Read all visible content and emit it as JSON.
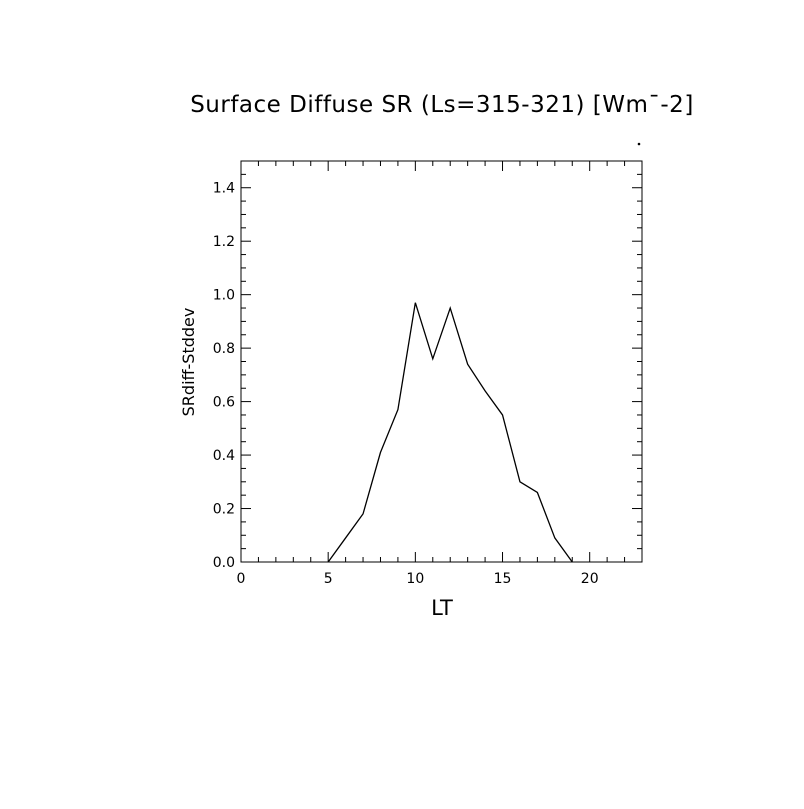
{
  "chart_data": {
    "type": "line",
    "title": "Surface Diffuse SR (Ls=315-321) [Wm¯-2]",
    "xlabel": "LT",
    "ylabel": "SRdiff-Stddev",
    "xlim": [
      0,
      23
    ],
    "ylim": [
      0,
      1.5
    ],
    "xticks": [
      0,
      5,
      10,
      15,
      20
    ],
    "xtick_labels": [
      "0",
      "5",
      "10",
      "15",
      "20"
    ],
    "yticks": [
      0,
      0.2,
      0.4,
      0.6,
      0.8,
      1.0,
      1.2,
      1.4
    ],
    "ytick_labels": [
      "0.0",
      "0.2",
      "0.4",
      "0.6",
      "0.8",
      "1.0",
      "1.2",
      "1.4"
    ],
    "grid": false,
    "series": [
      {
        "x": [
          5,
          6,
          7,
          8,
          9,
          10,
          11,
          12,
          13,
          14,
          15,
          16,
          17,
          18,
          19
        ],
        "values": [
          0.0,
          0.09,
          0.18,
          0.41,
          0.57,
          0.97,
          0.76,
          0.95,
          0.74,
          0.64,
          0.55,
          0.3,
          0.26,
          0.09,
          0.0
        ]
      }
    ]
  }
}
